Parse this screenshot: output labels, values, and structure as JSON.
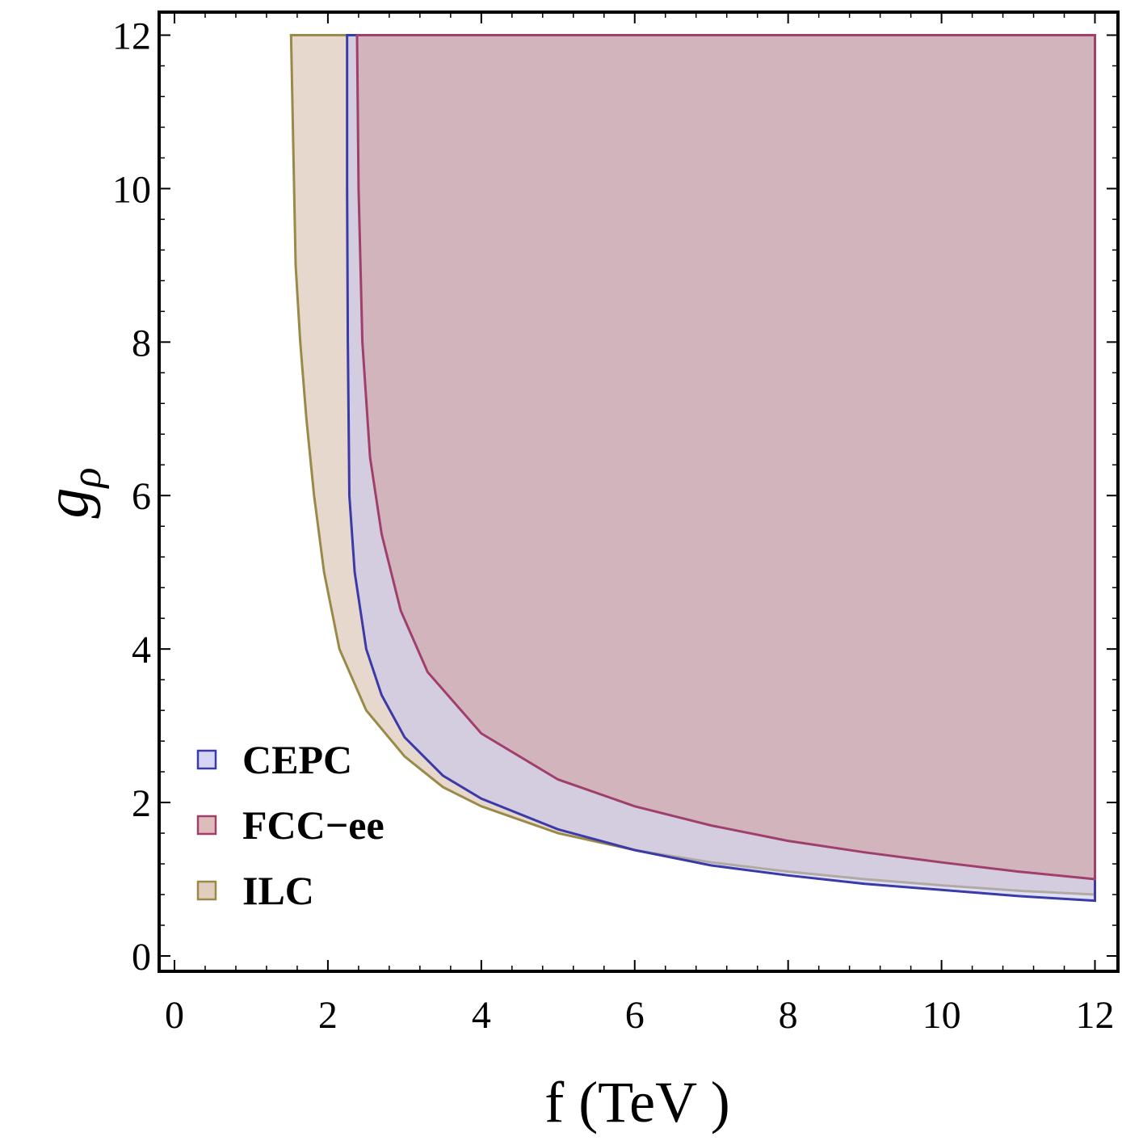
{
  "chart_data": {
    "type": "area",
    "xlabel": "f (TeV )",
    "ylabel_base": "g",
    "ylabel_sub": "ρ",
    "xlim": [
      -0.2,
      12.3
    ],
    "ylim": [
      -0.2,
      12.3
    ],
    "xticks": [
      0,
      2,
      4,
      6,
      8,
      10,
      12
    ],
    "yticks": [
      0,
      2,
      4,
      6,
      8,
      10,
      12
    ],
    "x_tick_labels": [
      "0",
      "2",
      "4",
      "6",
      "8",
      "10",
      "12"
    ],
    "y_tick_labels": [
      "0",
      "2",
      "4",
      "6",
      "8",
      "10",
      "12"
    ],
    "legend_position": "bottom-left",
    "series": [
      {
        "name": "ILC",
        "fill": "#d2b8a4",
        "stroke": "#9a8a48",
        "boundary": [
          [
            1.52,
            12.0
          ],
          [
            1.58,
            9.0
          ],
          [
            1.64,
            8.0
          ],
          [
            1.72,
            7.0
          ],
          [
            1.82,
            6.0
          ],
          [
            1.95,
            5.0
          ],
          [
            2.15,
            4.0
          ],
          [
            2.5,
            3.2
          ],
          [
            3.0,
            2.6
          ],
          [
            3.5,
            2.2
          ],
          [
            4.0,
            1.95
          ],
          [
            5.0,
            1.6
          ],
          [
            6.0,
            1.38
          ],
          [
            7.0,
            1.22
          ],
          [
            8.0,
            1.1
          ],
          [
            9.0,
            1.0
          ],
          [
            10.0,
            0.92
          ],
          [
            11.0,
            0.85
          ],
          [
            12.0,
            0.8
          ]
        ]
      },
      {
        "name": "CEPC",
        "fill": "#c5c5ef",
        "stroke": "#3a3aa8",
        "boundary": [
          [
            2.25,
            12.0
          ],
          [
            2.25,
            10.0
          ],
          [
            2.26,
            8.0
          ],
          [
            2.28,
            6.0
          ],
          [
            2.35,
            5.0
          ],
          [
            2.5,
            4.0
          ],
          [
            2.7,
            3.4
          ],
          [
            3.0,
            2.85
          ],
          [
            3.5,
            2.35
          ],
          [
            4.0,
            2.05
          ],
          [
            5.0,
            1.65
          ],
          [
            6.0,
            1.38
          ],
          [
            7.0,
            1.18
          ],
          [
            8.0,
            1.05
          ],
          [
            9.0,
            0.94
          ],
          [
            10.0,
            0.86
          ],
          [
            11.0,
            0.78
          ],
          [
            12.0,
            0.72
          ]
        ]
      },
      {
        "name": "FCC−ee",
        "fill": "#d0a0a0",
        "stroke": "#a0406a",
        "boundary": [
          [
            2.38,
            12.0
          ],
          [
            2.4,
            10.0
          ],
          [
            2.45,
            8.0
          ],
          [
            2.55,
            6.5
          ],
          [
            2.7,
            5.5
          ],
          [
            2.95,
            4.5
          ],
          [
            3.3,
            3.7
          ],
          [
            4.0,
            2.9
          ],
          [
            5.0,
            2.3
          ],
          [
            6.0,
            1.95
          ],
          [
            7.0,
            1.7
          ],
          [
            8.0,
            1.5
          ],
          [
            9.0,
            1.35
          ],
          [
            10.0,
            1.22
          ],
          [
            11.0,
            1.1
          ],
          [
            12.0,
            1.0
          ]
        ]
      }
    ]
  }
}
